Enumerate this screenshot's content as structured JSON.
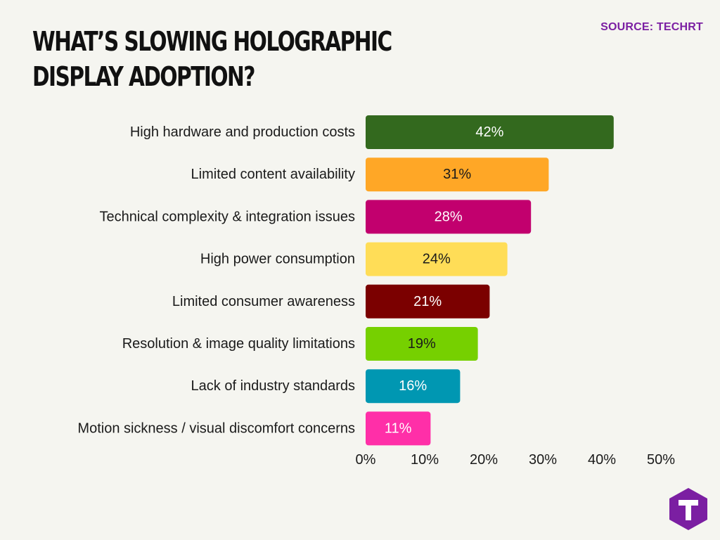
{
  "header": {
    "title": "WHAT’S SLOWING HOLOGRAPHIC DISPLAY ADOPTION?",
    "source": "SOURCE: TECHRT"
  },
  "brand": {
    "logo_icon": "techrt-logo-icon",
    "logo_color": "#7b1fa2"
  },
  "chart_data": {
    "type": "bar",
    "orientation": "horizontal",
    "title": "WHAT’S SLOWING HOLOGRAPHIC DISPLAY ADOPTION?",
    "categories": [
      "High hardware and production costs",
      "Limited content availability",
      "Technical complexity & integration issues",
      "High power consumption",
      "Limited consumer awareness",
      "Resolution & image quality limitations",
      "Lack of industry standards",
      "Motion sickness / visual discomfort concerns"
    ],
    "values": [
      42,
      31,
      28,
      24,
      21,
      19,
      16,
      11
    ],
    "value_labels": [
      "42%",
      "31%",
      "28%",
      "24%",
      "21%",
      "19%",
      "16%",
      "11%"
    ],
    "colors": [
      "#33691e",
      "#ffa726",
      "#c2006e",
      "#ffdd57",
      "#7b0000",
      "#76d000",
      "#0097b2",
      "#ff2fa8"
    ],
    "label_colors": [
      "#ffffff",
      "#1a1a1a",
      "#ffffff",
      "#1a1a1a",
      "#ffffff",
      "#1a1a1a",
      "#ffffff",
      "#ffffff"
    ],
    "xlim": [
      0,
      50
    ],
    "xticks": [
      0,
      10,
      20,
      30,
      40,
      50
    ],
    "xtick_labels": [
      "0%",
      "10%",
      "20%",
      "30%",
      "40%",
      "50%"
    ],
    "xlabel": "",
    "ylabel": "",
    "grid": false,
    "legend": "none"
  }
}
